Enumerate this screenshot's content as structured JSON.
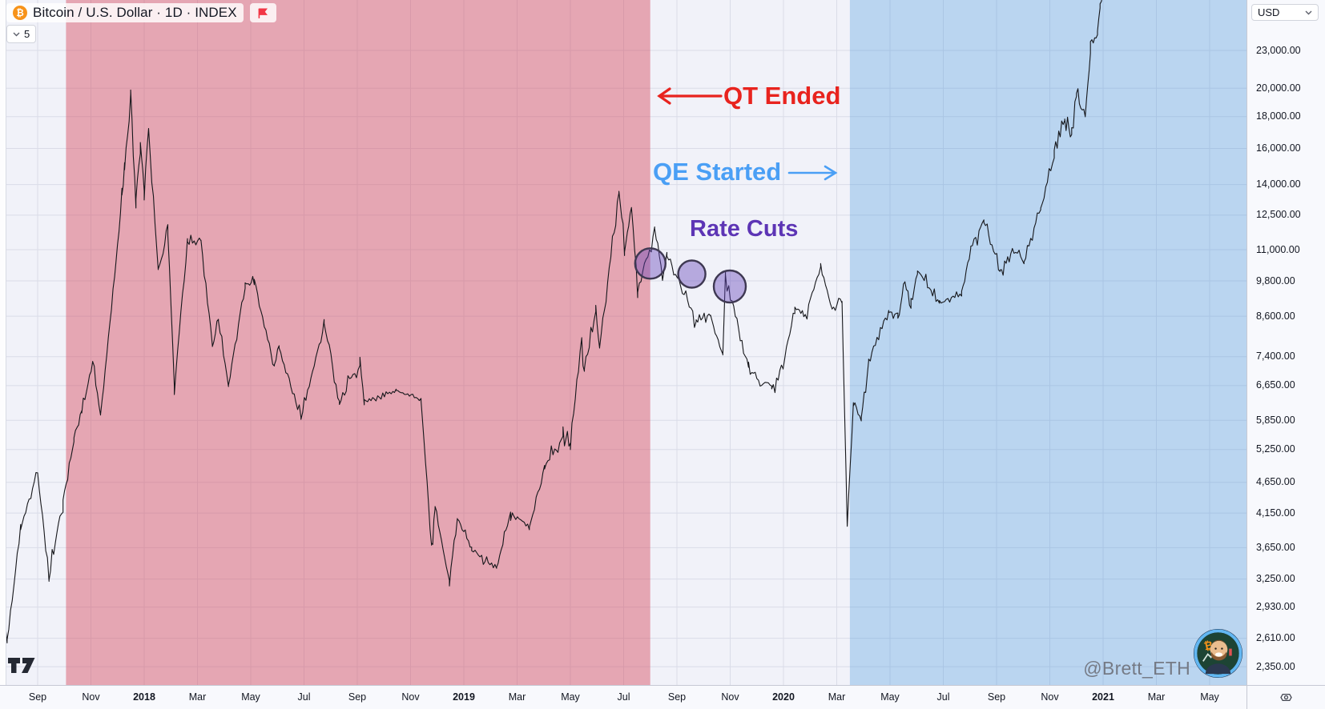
{
  "legend": {
    "symbol_title": "Bitcoin / U.S. Dollar · 1D · INDEX",
    "interval_badge": "5"
  },
  "price_scale": {
    "currency_label": "USD"
  },
  "credit_label": "@Brett_ETH",
  "annotations": {
    "qt_ended": {
      "label": "QT Ended",
      "color": "#e8231e",
      "arrow": "left"
    },
    "qe_started": {
      "label": "QE Started",
      "color": "#4a9ff5",
      "arrow": "right"
    },
    "rate_cuts": {
      "label": "Rate Cuts",
      "color": "#5d35b5"
    }
  },
  "colors": {
    "background": "#f1f2f9",
    "grid": "rgba(70,80,120,0.13)",
    "series_line": "#15161a",
    "qt_region_fill": "rgba(214,80,100,0.47)",
    "qe_region_fill": "rgba(60,145,220,0.30)",
    "rate_cut_fill": "rgba(100,70,185,0.42)",
    "rate_cut_stroke": "#3e3852",
    "axis_text": "#131722",
    "bitcoin_orange": "#f7931a",
    "flag_red": "#f23645"
  },
  "chart_data": {
    "type": "line",
    "title": "Bitcoin / U.S. Dollar · 1D · INDEX",
    "ylabel": "USD",
    "y_scale": "log",
    "ylim": [
      2350,
      27700
    ],
    "x_range": [
      "2017-07-17",
      "2021-06-10"
    ],
    "grid": true,
    "price_ticks": [
      {
        "text": "23,000.00",
        "value": 23000
      },
      {
        "text": "20,000.00",
        "value": 20000
      },
      {
        "text": "18,000.00",
        "value": 18000
      },
      {
        "text": "16,000.00",
        "value": 16000
      },
      {
        "text": "14,000.00",
        "value": 14000
      },
      {
        "text": "12,500.00",
        "value": 12500
      },
      {
        "text": "11,000.00",
        "value": 11000
      },
      {
        "text": "9,800.00",
        "value": 9800
      },
      {
        "text": "8,600.00",
        "value": 8600
      },
      {
        "text": "7,400.00",
        "value": 7400
      },
      {
        "text": "6,650.00",
        "value": 6650
      },
      {
        "text": "5,850.00",
        "value": 5850
      },
      {
        "text": "5,250.00",
        "value": 5250
      },
      {
        "text": "4,650.00",
        "value": 4650
      },
      {
        "text": "4,150.00",
        "value": 4150
      },
      {
        "text": "3,650.00",
        "value": 3650
      },
      {
        "text": "3,250.00",
        "value": 3250
      },
      {
        "text": "2,930.00",
        "value": 2930
      },
      {
        "text": "2,610.00",
        "value": 2610
      },
      {
        "text": "2,350.00",
        "value": 2350
      }
    ],
    "time_ticks": [
      {
        "text": "Sep",
        "date": "2017-09-01"
      },
      {
        "text": "Nov",
        "date": "2017-11-01"
      },
      {
        "text": "2018",
        "date": "2018-01-01",
        "year": true
      },
      {
        "text": "Mar",
        "date": "2018-03-01"
      },
      {
        "text": "May",
        "date": "2018-05-01"
      },
      {
        "text": "Jul",
        "date": "2018-07-01"
      },
      {
        "text": "Sep",
        "date": "2018-09-01"
      },
      {
        "text": "Nov",
        "date": "2018-11-01"
      },
      {
        "text": "2019",
        "date": "2019-01-01",
        "year": true
      },
      {
        "text": "Mar",
        "date": "2019-03-01"
      },
      {
        "text": "May",
        "date": "2019-05-01"
      },
      {
        "text": "Jul",
        "date": "2019-07-01"
      },
      {
        "text": "Sep",
        "date": "2019-09-01"
      },
      {
        "text": "Nov",
        "date": "2019-11-01"
      },
      {
        "text": "2020",
        "date": "2020-01-01",
        "year": true
      },
      {
        "text": "Mar",
        "date": "2020-03-01"
      },
      {
        "text": "May",
        "date": "2020-05-01"
      },
      {
        "text": "Jul",
        "date": "2020-07-01"
      },
      {
        "text": "Sep",
        "date": "2020-09-01"
      },
      {
        "text": "Nov",
        "date": "2020-11-01"
      },
      {
        "text": "2021",
        "date": "2021-01-01",
        "year": true
      },
      {
        "text": "Mar",
        "date": "2021-03-01"
      },
      {
        "text": "May",
        "date": "2021-05-01"
      }
    ],
    "regions": [
      {
        "name": "qt-period",
        "from": "2017-10-03",
        "to": "2019-08-01",
        "color_key": "qt_region_fill"
      },
      {
        "name": "qe-period",
        "from": "2020-03-16",
        "to": "end",
        "color_key": "qe_region_fill"
      }
    ],
    "events": [
      {
        "name": "rate-cut-1",
        "date": "2019-08-01",
        "price": 10450,
        "radius": 19
      },
      {
        "name": "rate-cut-2",
        "date": "2019-09-18",
        "price": 10050,
        "radius": 17
      },
      {
        "name": "rate-cut-3",
        "date": "2019-10-31",
        "price": 9600,
        "radius": 20
      }
    ],
    "series": [
      {
        "name": "BTCUSD",
        "keypoints": [
          [
            "2017-07-17",
            2050
          ],
          [
            "2017-07-20",
            2900,
            1.3
          ],
          [
            "2017-07-27",
            2580
          ],
          [
            "2017-08-12",
            3900
          ],
          [
            "2017-09-01",
            4850,
            1.2
          ],
          [
            "2017-09-14",
            3250,
            1.3
          ],
          [
            "2017-09-30",
            4350
          ],
          [
            "2017-10-12",
            5450
          ],
          [
            "2017-10-21",
            6050
          ],
          [
            "2017-11-03",
            7250
          ],
          [
            "2017-11-12",
            5950,
            1.3
          ],
          [
            "2017-11-28",
            9900
          ],
          [
            "2017-12-06",
            13500,
            1.6
          ],
          [
            "2017-12-09",
            14900,
            1.6
          ],
          [
            "2017-12-16",
            19650,
            1.7
          ],
          [
            "2017-12-22",
            13300,
            1.7
          ],
          [
            "2017-12-27",
            16100,
            1.5
          ],
          [
            "2018-01-01",
            13800,
            1.4
          ],
          [
            "2018-01-06",
            17100,
            1.4
          ],
          [
            "2018-01-17",
            10200,
            1.4
          ],
          [
            "2018-01-28",
            11600
          ],
          [
            "2018-02-05",
            6650,
            1.5
          ],
          [
            "2018-02-20",
            11300
          ],
          [
            "2018-03-05",
            11450
          ],
          [
            "2018-03-18",
            7700
          ],
          [
            "2018-03-25",
            8500
          ],
          [
            "2018-04-06",
            6650
          ],
          [
            "2018-04-25",
            9600
          ],
          [
            "2018-05-05",
            9800
          ],
          [
            "2018-05-28",
            7150
          ],
          [
            "2018-06-03",
            7680
          ],
          [
            "2018-06-28",
            5870
          ],
          [
            "2018-07-24",
            8380
          ],
          [
            "2018-08-11",
            6200
          ],
          [
            "2018-09-04",
            7350
          ],
          [
            "2018-09-09",
            6250
          ],
          [
            "2018-10-15",
            6550,
            0.45
          ],
          [
            "2018-11-13",
            6300,
            0.5
          ],
          [
            "2018-11-25",
            3680,
            1.4
          ],
          [
            "2018-11-29",
            4280
          ],
          [
            "2018-12-15",
            3220,
            1.1
          ],
          [
            "2018-12-24",
            4080
          ],
          [
            "2019-01-10",
            3620
          ],
          [
            "2019-02-08",
            3400
          ],
          [
            "2019-02-24",
            4140
          ],
          [
            "2019-03-15",
            3920,
            0.6
          ],
          [
            "2019-04-02",
            4880
          ],
          [
            "2019-04-23",
            5540
          ],
          [
            "2019-05-01",
            5300
          ],
          [
            "2019-05-14",
            7980,
            1.3
          ],
          [
            "2019-05-17",
            7050,
            1.3
          ],
          [
            "2019-05-30",
            8680
          ],
          [
            "2019-06-04",
            7650
          ],
          [
            "2019-06-26",
            13650,
            1.5
          ],
          [
            "2019-07-02",
            10850,
            1.6
          ],
          [
            "2019-07-10",
            12950,
            1.5
          ],
          [
            "2019-07-17",
            9450,
            1.4
          ],
          [
            "2019-08-06",
            11850,
            1.2
          ],
          [
            "2019-08-15",
            9950
          ],
          [
            "2019-08-20",
            10850
          ],
          [
            "2019-09-23",
            8450
          ],
          [
            "2019-10-09",
            8600
          ],
          [
            "2019-10-23",
            7450
          ],
          [
            "2019-10-26",
            10050,
            1.3
          ],
          [
            "2019-11-22",
            7120
          ],
          [
            "2019-12-18",
            6550
          ],
          [
            "2019-12-31",
            7200
          ],
          [
            "2020-01-14",
            8850
          ],
          [
            "2020-01-26",
            8600
          ],
          [
            "2020-02-13",
            10350
          ],
          [
            "2020-02-26",
            8800
          ],
          [
            "2020-03-07",
            9100
          ],
          [
            "2020-03-13",
            3950,
            1.8
          ],
          [
            "2020-03-20",
            6200,
            1.4
          ],
          [
            "2020-03-29",
            5900
          ],
          [
            "2020-04-07",
            7300
          ],
          [
            "2020-04-30",
            8800,
            1.2
          ],
          [
            "2020-05-10",
            8550
          ],
          [
            "2020-05-18",
            9700
          ],
          [
            "2020-05-25",
            8850
          ],
          [
            "2020-06-02",
            10150
          ],
          [
            "2020-06-27",
            9050,
            0.6
          ],
          [
            "2020-07-22",
            9350,
            0.5
          ],
          [
            "2020-08-02",
            11100
          ],
          [
            "2020-08-17",
            12250
          ],
          [
            "2020-09-05",
            10150
          ],
          [
            "2020-09-19",
            11000
          ],
          [
            "2020-10-02",
            10550
          ],
          [
            "2020-10-21",
            12800
          ],
          [
            "2020-11-06",
            15550
          ],
          [
            "2020-11-18",
            17800
          ],
          [
            "2020-11-26",
            16850,
            1.3
          ],
          [
            "2020-12-01",
            19650,
            1.3
          ],
          [
            "2020-12-11",
            17900
          ],
          [
            "2020-12-17",
            22800,
            1.4
          ],
          [
            "2020-12-25",
            24600
          ],
          [
            "2020-12-28",
            27200
          ],
          [
            "2020-12-31",
            29300
          ]
        ]
      }
    ]
  }
}
